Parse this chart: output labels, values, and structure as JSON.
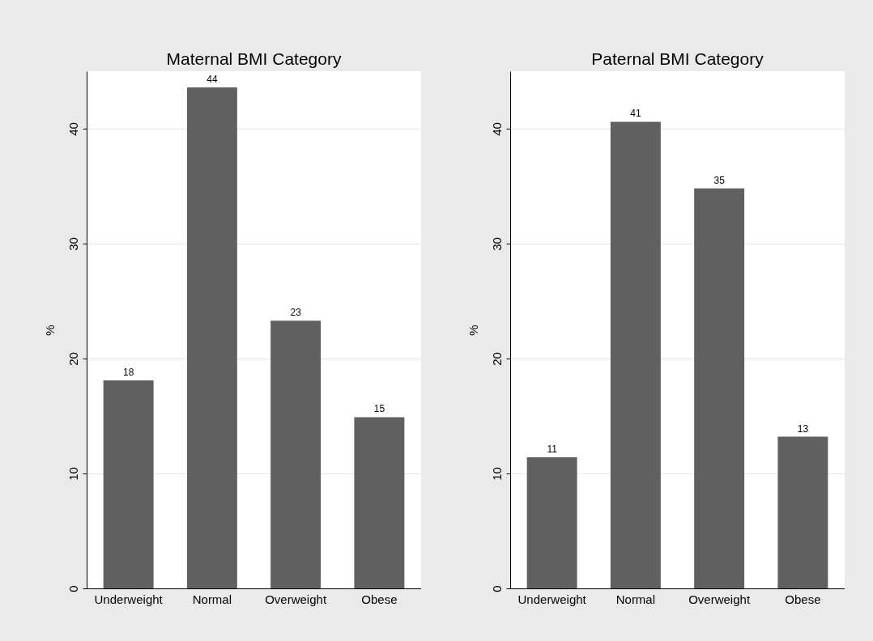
{
  "chart_data": [
    {
      "type": "bar",
      "title": "Maternal BMI Category",
      "categories": [
        "Underweight",
        "Normal",
        "Overweight",
        "Obese"
      ],
      "values": [
        18.1,
        43.6,
        23.3,
        14.9
      ],
      "value_labels": [
        "18",
        "44",
        "23",
        "15"
      ],
      "color": "#606060",
      "ylabel": "%",
      "ylim": [
        0,
        45
      ],
      "yticks": [
        0,
        10,
        20,
        30,
        40
      ],
      "grid": "y"
    },
    {
      "type": "bar",
      "title": "Paternal BMI Category",
      "categories": [
        "Underweight",
        "Normal",
        "Overweight",
        "Obese"
      ],
      "values": [
        11.4,
        40.6,
        34.8,
        13.2
      ],
      "value_labels": [
        "11",
        "41",
        "35",
        "13"
      ],
      "color": "#606060",
      "ylabel": "%",
      "ylim": [
        0,
        45
      ],
      "yticks": [
        0,
        10,
        20,
        30,
        40
      ],
      "grid": "y"
    }
  ]
}
